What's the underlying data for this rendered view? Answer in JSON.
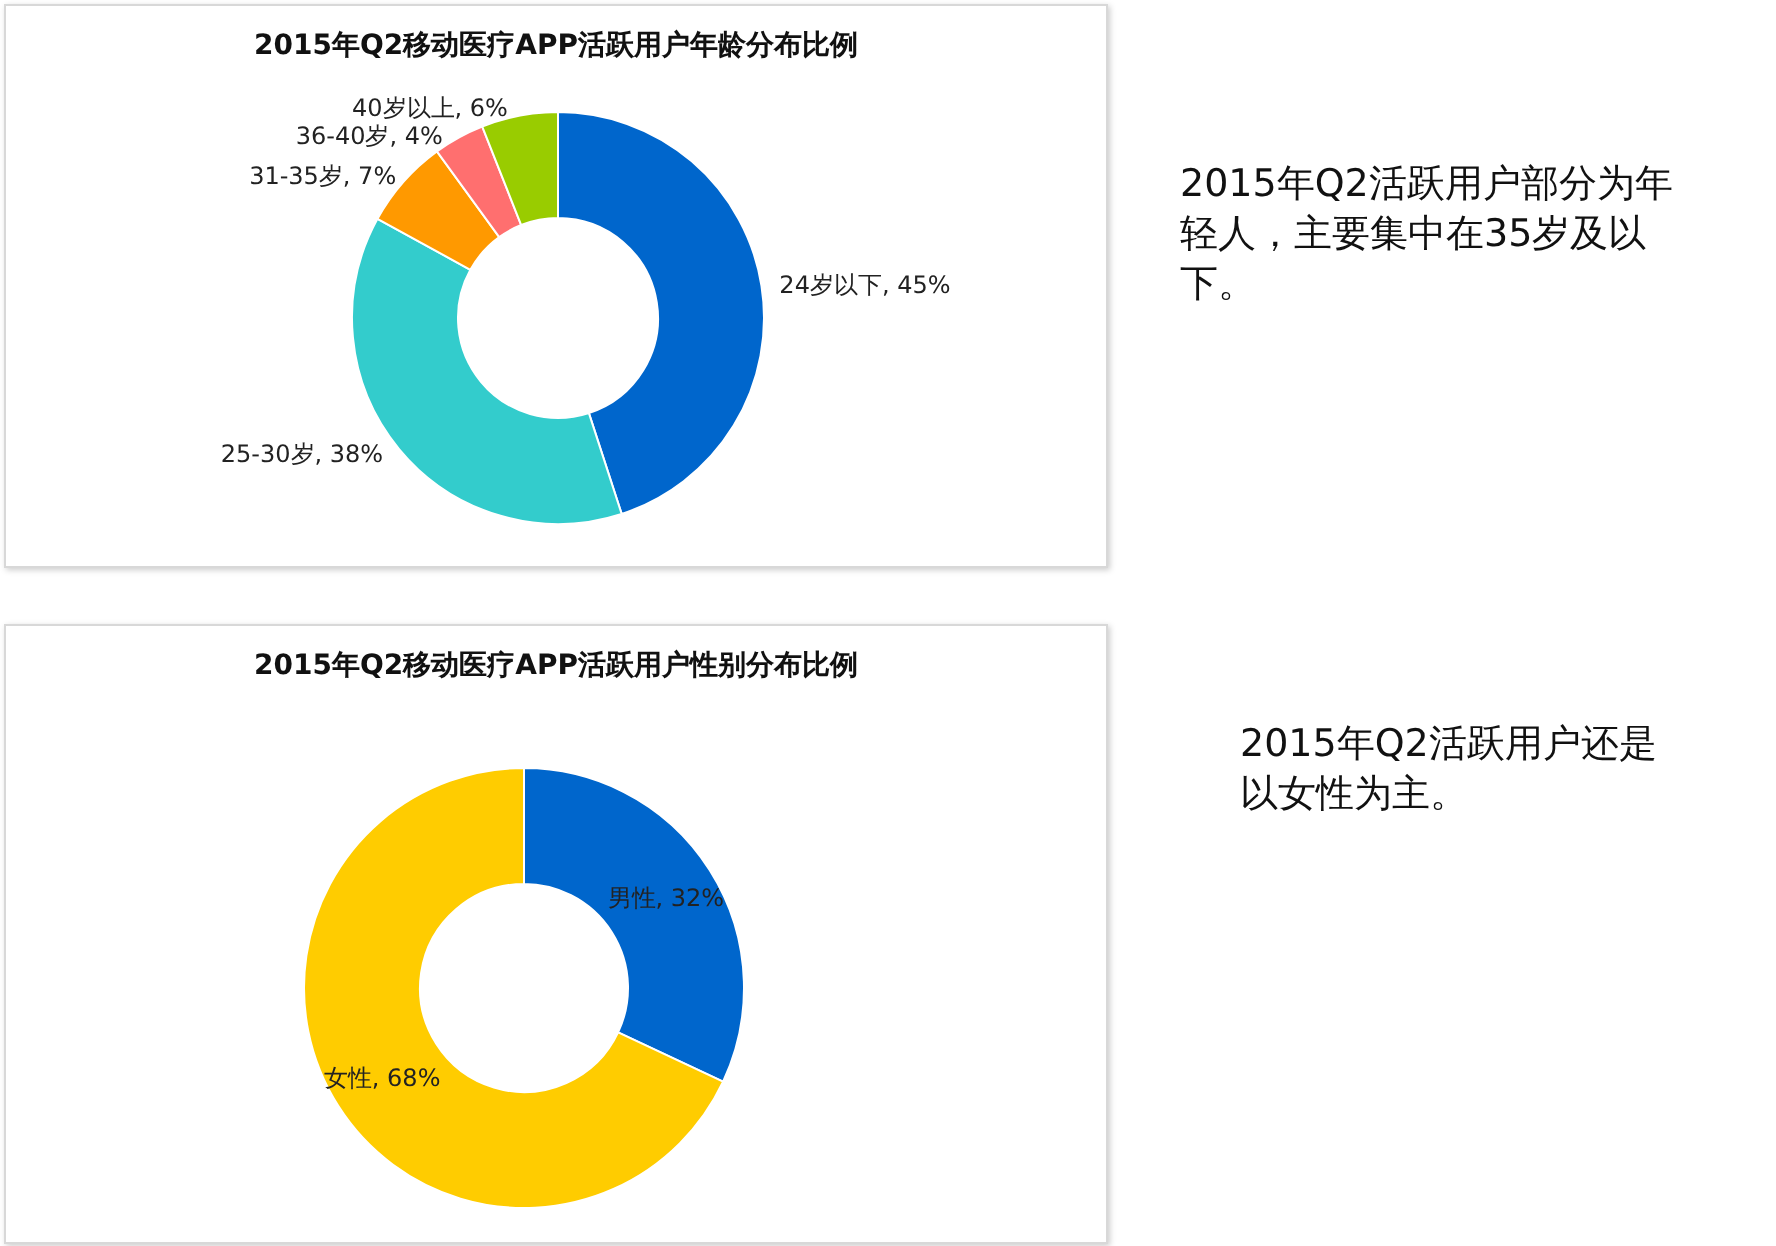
{
  "chart_data": [
    {
      "type": "donut",
      "title": "2015年Q2移动医疗APP活跃用户年龄分布比例",
      "categories": [
        "24岁以下",
        "25-30岁",
        "31-35岁",
        "36-40岁",
        "40岁以上"
      ],
      "values": [
        45,
        38,
        7,
        4,
        6
      ],
      "colors": [
        "#0066cc",
        "#33cccc",
        "#ff9900",
        "#ff6f6f",
        "#99cc00"
      ],
      "annotations": [
        "2015年Q2活跃用户部分为年轻人，主要集中在35岁及以下。"
      ],
      "value_labels": [
        ", 45%",
        ", 38%",
        ", 7%",
        ", 4%",
        ", 6%"
      ],
      "legend": false
    },
    {
      "type": "donut",
      "title": "2015年Q2移动医疗APP活跃用户性别分布比例",
      "categories": [
        "男性",
        "女性"
      ],
      "values": [
        32,
        68
      ],
      "colors": [
        "#0066cc",
        "#ffcc00"
      ],
      "annotations": [
        "2015年Q2活跃用户还是以女性为主。"
      ],
      "value_labels": [
        ", 32%",
        ", 68%"
      ],
      "legend": false
    }
  ]
}
